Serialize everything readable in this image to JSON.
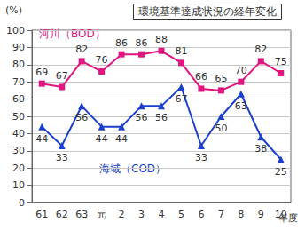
{
  "chart_data": {
    "type": "line",
    "title": "環境基準達成状況の経年変化",
    "y_label": "(%)",
    "x_label": "年度",
    "categories": [
      "61",
      "62",
      "63",
      "元",
      "2",
      "3",
      "4",
      "5",
      "6",
      "7",
      "8",
      "9",
      "10"
    ],
    "series": [
      {
        "name": "河川（BOD）",
        "color": "#e0157f",
        "marker": "square",
        "values": [
          69,
          67,
          82,
          76,
          86,
          86,
          88,
          81,
          66,
          65,
          70,
          82,
          75
        ]
      },
      {
        "name": "海域（COD）",
        "color": "#1a3fd0",
        "marker": "triangle",
        "values": [
          44,
          33,
          56,
          44,
          44,
          56,
          56,
          67,
          33,
          50,
          63,
          38,
          25
        ]
      }
    ],
    "ylim": [
      0,
      100
    ],
    "yticks": [
      0,
      10,
      20,
      30,
      40,
      50,
      60,
      70,
      80,
      90,
      100
    ],
    "grid": true,
    "data_labels": true
  }
}
